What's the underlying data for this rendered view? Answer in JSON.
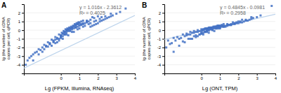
{
  "chart_data": [
    {
      "type": "scatter",
      "title": "A",
      "xlabel": "Lg (FPKM, Illumina, RNAseq)",
      "ylabel": "lg (the number of cDNA copies per cell, qPCR)",
      "annotations": [
        "y = 1.016x - 2.3612",
        "R² = 0.4025"
      ],
      "xlim": [
        -2,
        4
      ],
      "ylim": [
        -5,
        3
      ],
      "xticks": [
        0,
        1,
        2,
        3,
        4
      ],
      "yticks": [
        -4,
        -3,
        -2,
        -1,
        0,
        1,
        2
      ],
      "grid": "y",
      "series": [
        {
          "type": "scatter",
          "color": "#4472C4",
          "marker": "square",
          "x": [
            -1.8,
            -1.5,
            -1.3,
            -1.0,
            -0.8,
            -0.6,
            -0.4,
            -0.2,
            0.0,
            0.1,
            0.2,
            0.3,
            0.4,
            0.5,
            0.6,
            0.7,
            0.8,
            0.9,
            1.0,
            1.1,
            -1.6,
            -1.4,
            -1.2,
            -0.9,
            -0.7,
            -0.5,
            -0.3,
            -0.1,
            0.05,
            0.15,
            0.25,
            0.35,
            0.45,
            0.55,
            0.65,
            0.75,
            0.85,
            0.95,
            -1.9,
            -1.7,
            -1.1,
            -0.8,
            -0.6,
            -0.4,
            -0.2,
            0.0,
            0.1,
            0.2,
            0.3,
            0.4,
            0.5,
            0.6,
            0.7,
            0.8,
            0.9,
            1.0,
            -0.3,
            -0.1,
            0.0,
            0.1,
            0.2,
            0.3,
            0.4,
            0.5,
            0.6,
            0.7,
            0.8,
            0.9,
            1.0,
            1.1,
            1.2,
            1.3,
            1.4,
            1.5,
            1.6,
            1.7,
            1.8,
            1.9,
            2.0,
            2.1,
            2.2,
            2.3,
            2.4,
            2.5,
            2.6,
            2.7,
            2.8,
            3.0,
            3.2,
            3.5,
            -0.5,
            -0.2,
            0.1,
            0.4,
            0.7,
            1.0,
            1.3,
            1.6,
            1.9,
            2.2,
            0.0,
            0.3,
            0.6,
            0.9,
            1.2,
            1.5,
            1.8,
            2.1,
            2.4,
            2.7,
            -1.0,
            -0.7,
            -0.4,
            -0.1,
            0.2,
            0.5,
            0.8,
            1.1,
            1.4,
            1.7,
            -1.5,
            -1.2,
            -0.9,
            -0.6,
            -0.3,
            0.0,
            0.3,
            0.6,
            0.9,
            1.2,
            0.2,
            0.4,
            0.6,
            0.8,
            1.0,
            1.2,
            1.4,
            1.6,
            1.8,
            2.0
          ],
          "values": [
            -3.5,
            -2.8,
            -2.5,
            -2.0,
            -1.8,
            -1.5,
            -1.2,
            -0.9,
            -0.6,
            -0.4,
            -0.2,
            0.0,
            0.1,
            0.2,
            0.3,
            0.5,
            0.6,
            0.8,
            0.9,
            1.0,
            -3.0,
            -2.6,
            -2.2,
            -1.7,
            -1.4,
            -1.1,
            -0.8,
            -0.5,
            -0.3,
            -0.1,
            0.1,
            0.2,
            0.3,
            0.4,
            0.5,
            0.7,
            0.8,
            0.9,
            -4.0,
            -3.2,
            -2.3,
            -1.9,
            -1.6,
            -1.3,
            -1.0,
            -0.7,
            -0.4,
            -0.2,
            0.0,
            0.1,
            0.2,
            0.3,
            0.4,
            0.6,
            0.7,
            0.8,
            -1.5,
            -1.2,
            -0.9,
            -0.7,
            -0.5,
            -0.3,
            -0.1,
            0.0,
            0.1,
            0.2,
            0.3,
            0.4,
            0.5,
            0.6,
            0.7,
            0.8,
            0.9,
            1.0,
            0.4,
            0.5,
            0.6,
            0.7,
            0.8,
            1.0,
            1.1,
            1.2,
            1.3,
            1.4,
            1.5,
            1.6,
            1.7,
            1.9,
            2.1,
            2.5,
            -1.8,
            -1.4,
            -1.0,
            -0.6,
            -0.2,
            0.2,
            0.5,
            0.8,
            1.1,
            1.5,
            -0.8,
            -0.5,
            -0.2,
            0.1,
            0.4,
            0.7,
            1.0,
            1.3,
            1.6,
            1.9,
            -2.5,
            -1.9,
            -1.4,
            -1.0,
            -0.5,
            -0.1,
            0.3,
            0.7,
            1.1,
            1.5,
            -3.5,
            -2.8,
            -2.2,
            -1.6,
            -1.1,
            -0.6,
            -0.1,
            0.3,
            0.7,
            1.1,
            -0.3,
            0.0,
            0.2,
            0.4,
            0.6,
            0.8,
            1.0,
            1.2,
            1.4,
            1.6
          ]
        },
        {
          "type": "line",
          "color": "#BDD4EC",
          "x": [
            -2,
            4
          ],
          "values": [
            -4.3932,
            1.7028
          ]
        }
      ]
    },
    {
      "type": "scatter",
      "title": "B",
      "xlabel": "Lg (ONT, TPM)",
      "ylabel": "lg (the number of cDNA copies per cell, qPCR)",
      "annotations": [
        "y = 0.4845x - 0.0981",
        "R² = 0.2958"
      ],
      "xlim": [
        -2,
        4
      ],
      "ylim": [
        -5,
        3
      ],
      "xticks": [
        0,
        1,
        2,
        3,
        4
      ],
      "yticks": [
        -4,
        -3,
        -2,
        -1,
        0,
        1,
        2
      ],
      "grid": "y",
      "series": [
        {
          "type": "scatter",
          "color": "#4472C4",
          "marker": "square",
          "x": [
            -1.8,
            -1.5,
            -1.3,
            -1.0,
            -0.8,
            -0.6,
            -0.4,
            -0.2,
            0.0,
            0.1,
            0.2,
            0.3,
            0.4,
            0.5,
            0.6,
            0.7,
            0.8,
            0.9,
            1.0,
            1.1,
            -1.6,
            -1.4,
            -1.2,
            -0.9,
            -0.7,
            -0.5,
            -0.3,
            -0.1,
            0.05,
            0.15,
            0.25,
            0.35,
            0.45,
            0.55,
            0.65,
            0.75,
            0.85,
            0.95,
            -1.9,
            -1.7,
            -1.1,
            -0.8,
            -0.6,
            -0.4,
            -0.2,
            0.0,
            0.1,
            0.2,
            0.3,
            0.4,
            0.5,
            0.6,
            0.7,
            0.8,
            0.9,
            1.0,
            -0.3,
            -0.1,
            0.0,
            0.1,
            0.2,
            0.3,
            0.4,
            0.5,
            0.6,
            0.7,
            0.8,
            0.9,
            1.0,
            1.1,
            1.2,
            1.3,
            1.4,
            1.5,
            1.6,
            1.7,
            1.8,
            1.9,
            2.0,
            2.1,
            2.2,
            2.3,
            2.4,
            2.5,
            2.6,
            2.7,
            2.8,
            3.0,
            3.2,
            3.8,
            -0.5,
            -0.2,
            0.1,
            0.4,
            0.7,
            1.0,
            1.3,
            1.6,
            1.9,
            2.2,
            0.0,
            0.3,
            0.6,
            0.9,
            1.2,
            1.5,
            1.8,
            2.1,
            2.4,
            2.7,
            -1.0,
            -0.7,
            -0.4,
            -0.1,
            0.2,
            0.5,
            0.8,
            1.1,
            1.4,
            1.7,
            -1.5,
            -1.2,
            -0.9,
            -0.6,
            -0.3,
            0.0,
            0.3,
            0.6,
            0.9,
            1.2,
            0.2,
            0.4,
            0.6,
            0.8,
            1.0,
            1.2,
            1.4,
            1.6,
            1.8,
            2.0
          ],
          "values": [
            -1.2,
            -0.9,
            -0.8,
            -0.5,
            -0.4,
            -0.2,
            -0.1,
            0.0,
            0.1,
            0.1,
            0.2,
            0.2,
            0.3,
            0.3,
            0.3,
            0.4,
            0.4,
            0.5,
            0.5,
            0.6,
            -1.5,
            -1.2,
            -1.0,
            -0.7,
            -0.5,
            -0.3,
            -0.2,
            -0.1,
            0.0,
            0.1,
            0.2,
            0.2,
            0.3,
            0.3,
            0.4,
            0.4,
            0.5,
            0.5,
            -2.0,
            -1.6,
            -0.9,
            -0.6,
            -0.5,
            -0.3,
            -0.2,
            -0.1,
            0.0,
            0.1,
            0.1,
            0.2,
            0.2,
            0.3,
            0.3,
            0.4,
            0.4,
            0.5,
            -0.8,
            -0.5,
            -0.4,
            -0.3,
            -0.2,
            -0.1,
            0.0,
            0.1,
            0.1,
            0.2,
            0.2,
            0.3,
            0.3,
            0.4,
            0.5,
            0.5,
            0.6,
            0.6,
            0.6,
            0.7,
            0.7,
            0.8,
            0.8,
            0.9,
            0.9,
            1.0,
            1.1,
            1.1,
            1.2,
            1.3,
            1.4,
            1.5,
            1.7,
            2.8,
            -1.0,
            -0.7,
            -0.5,
            -0.3,
            -0.1,
            0.2,
            0.4,
            0.7,
            0.9,
            1.2,
            -0.4,
            -0.2,
            0.0,
            0.2,
            0.4,
            0.6,
            0.8,
            1.0,
            1.2,
            1.5,
            -1.3,
            -1.0,
            -0.7,
            -0.5,
            -0.2,
            0.1,
            0.3,
            0.5,
            0.7,
            0.9,
            -2.5,
            -1.8,
            -1.4,
            -1.0,
            -0.6,
            -0.3,
            0.0,
            0.3,
            0.5,
            0.7,
            -0.2,
            0.0,
            0.1,
            0.2,
            0.3,
            0.4,
            0.5,
            0.6,
            0.8,
            1.0
          ]
        },
        {
          "type": "line",
          "color": "#BDD4EC",
          "x": [
            -2,
            4
          ],
          "values": [
            -1.0671,
            1.8399
          ]
        }
      ]
    }
  ]
}
